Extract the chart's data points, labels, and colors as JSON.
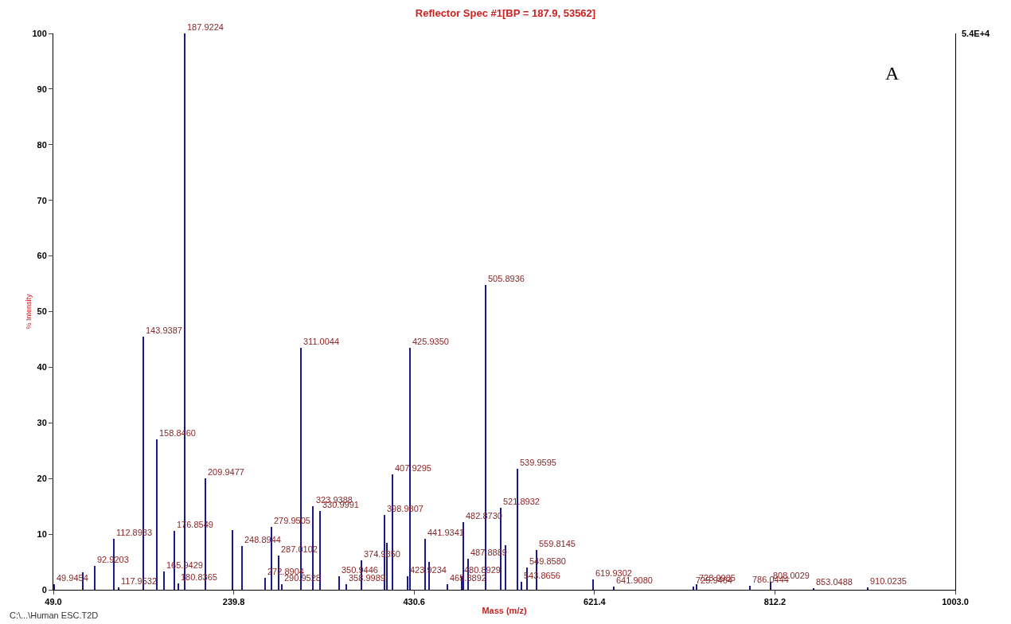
{
  "chart_data": {
    "type": "bar",
    "title": "Reflector Spec #1[BP = 187.9, 53562]",
    "xlabel": "Mass (m/z)",
    "ylabel": "% Intensity",
    "x": [
      49.9454,
      80.2,
      92.9203,
      112.8983,
      117.9532,
      143.9387,
      158.846,
      165.9429,
      176.8549,
      180.8365,
      187.9224,
      209.9477,
      238.1,
      248.8944,
      272.8904,
      279.9505,
      287.0102,
      290.9528,
      311.0044,
      323.9388,
      330.9991,
      350.9446,
      358.9989,
      374.985,
      398.9807,
      402,
      407.9295,
      423.9234,
      425.935,
      441.9341,
      446.5,
      465.8892,
      480.8929,
      482.873,
      487.8889,
      505.8936,
      521.8932,
      527,
      539.9595,
      543.8656,
      549.858,
      559.8145,
      619.9302,
      641.908,
      725.9464,
      728.9985,
      786.0444,
      808.0029,
      853.0488,
      910.0235
    ],
    "series": [
      {
        "color": "#1a1a8c",
        "values": [
          1,
          3.2,
          4.3,
          9.1,
          0.5,
          45.5,
          27,
          3.3,
          10.6,
          1.2,
          100,
          20,
          10.7,
          7.8,
          2.2,
          11.3,
          6.2,
          1,
          43.5,
          15,
          14.2,
          2.5,
          1,
          5.3,
          13.5,
          8.5,
          20.8,
          2.5,
          43.5,
          9.2,
          5,
          1,
          2.5,
          12.2,
          5.6,
          54.8,
          14.7,
          8,
          21.8,
          1.5,
          4,
          7.2,
          1.8,
          0.6,
          0.6,
          1,
          0.7,
          1.5,
          0.3,
          0.4
        ]
      }
    ],
    "xlim": [
      49.0,
      1003.0
    ],
    "xticks": [
      {
        "value": 49.0,
        "label": "49.0"
      },
      {
        "value": 239.8,
        "label": "239.8"
      },
      {
        "value": 430.6,
        "label": "430.6"
      },
      {
        "value": 621.4,
        "label": "621.4"
      },
      {
        "value": 812.2,
        "label": "812.2"
      },
      {
        "value": 1003.0,
        "label": "1003.0"
      }
    ],
    "ylim": [
      0,
      100
    ],
    "yticks": [
      0,
      10,
      20,
      30,
      40,
      50,
      60,
      70,
      80,
      90,
      100
    ],
    "grid": false,
    "annotations": [
      {
        "text": "49.9454",
        "x": 49.9454,
        "y": 1
      },
      {
        "text": "92.9203",
        "x": 92.9203,
        "y": 4.3
      },
      {
        "text": "112.8983",
        "x": 112.8983,
        "y": 9.1
      },
      {
        "text": "117.9532",
        "x": 117.9532,
        "y": 0.5
      },
      {
        "text": "143.9387",
        "x": 143.9387,
        "y": 45.5
      },
      {
        "text": "158.8460",
        "x": 158.846,
        "y": 27
      },
      {
        "text": "165.9429",
        "x": 165.9429,
        "y": 3.3
      },
      {
        "text": "176.8549",
        "x": 176.8549,
        "y": 10.6
      },
      {
        "text": "180.8365",
        "x": 180.8365,
        "y": 1.2
      },
      {
        "text": "187.9224",
        "x": 187.9224,
        "y": 100
      },
      {
        "text": "209.9477",
        "x": 209.9477,
        "y": 20
      },
      {
        "text": "248.8944",
        "x": 248.8944,
        "y": 7.8
      },
      {
        "text": "272.8904",
        "x": 272.8904,
        "y": 2.2
      },
      {
        "text": "279.9505",
        "x": 279.9505,
        "y": 11.3
      },
      {
        "text": "287.0102",
        "x": 287.0102,
        "y": 6.2
      },
      {
        "text": "290.9528",
        "x": 290.9528,
        "y": 1
      },
      {
        "text": "311.0044",
        "x": 311.0044,
        "y": 43.5
      },
      {
        "text": "323.9388",
        "x": 323.9388,
        "y": 15
      },
      {
        "text": "330.9991",
        "x": 330.9991,
        "y": 14.2
      },
      {
        "text": "350.9446",
        "x": 350.9446,
        "y": 2.5
      },
      {
        "text": "358.9989",
        "x": 358.9989,
        "y": 1
      },
      {
        "text": "374.9850",
        "x": 374.985,
        "y": 5.3
      },
      {
        "text": "398.9807",
        "x": 398.9807,
        "y": 13.5
      },
      {
        "text": "407.9295",
        "x": 407.9295,
        "y": 20.8
      },
      {
        "text": "423.9234",
        "x": 423.9234,
        "y": 2.5
      },
      {
        "text": "425.9350",
        "x": 425.935,
        "y": 43.5
      },
      {
        "text": "441.9341",
        "x": 441.9341,
        "y": 9.2
      },
      {
        "text": "465.8892",
        "x": 465.8892,
        "y": 1
      },
      {
        "text": "480.8929",
        "x": 480.8929,
        "y": 2.5
      },
      {
        "text": "482.8730",
        "x": 482.873,
        "y": 12.2
      },
      {
        "text": "487.8889",
        "x": 487.8889,
        "y": 5.6
      },
      {
        "text": "505.8936",
        "x": 505.8936,
        "y": 54.8
      },
      {
        "text": "521.8932",
        "x": 521.8932,
        "y": 14.7
      },
      {
        "text": "539.9595",
        "x": 539.9595,
        "y": 21.8
      },
      {
        "text": "543.8656",
        "x": 543.8656,
        "y": 1.5
      },
      {
        "text": "549.8580",
        "x": 549.858,
        "y": 4
      },
      {
        "text": "559.8145",
        "x": 559.8145,
        "y": 7.2
      },
      {
        "text": "619.9302",
        "x": 619.9302,
        "y": 1.8
      },
      {
        "text": "641.9080",
        "x": 641.908,
        "y": 0.6
      },
      {
        "text": "725.9464",
        "x": 725.9464,
        "y": 0.6
      },
      {
        "text": "728.9985",
        "x": 728.9985,
        "y": 1
      },
      {
        "text": "786.0444",
        "x": 786.0444,
        "y": 0.7
      },
      {
        "text": "808.0029",
        "x": 808.0029,
        "y": 1.5
      },
      {
        "text": "853.0488",
        "x": 853.0488,
        "y": 0.3
      },
      {
        "text": "910.0235",
        "x": 910.0235,
        "y": 0.4
      },
      "A",
      "C:\\...\\Human ESC.T2D",
      "5.4E+4"
    ]
  }
}
